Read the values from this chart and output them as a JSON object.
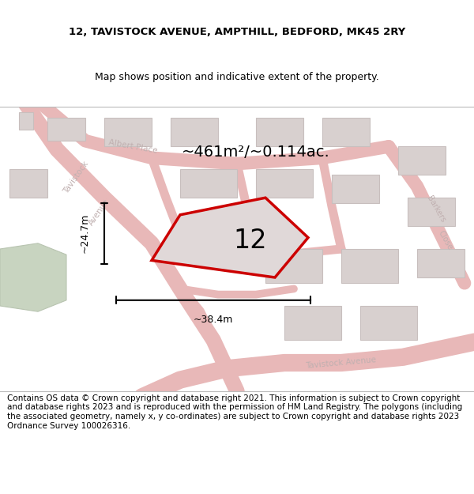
{
  "title_line1": "12, TAVISTOCK AVENUE, AMPTHILL, BEDFORD, MK45 2RY",
  "title_line2": "Map shows position and indicative extent of the property.",
  "area_label": "~461m²/~0.114ac.",
  "plot_number": "12",
  "dim_width": "~38.4m",
  "dim_height": "~24.7m",
  "footer_text": "Contains OS data © Crown copyright and database right 2021. This information is subject to Crown copyright and database rights 2023 and is reproduced with the permission of HM Land Registry. The polygons (including the associated geometry, namely x, y co-ordinates) are subject to Crown copyright and database rights 2023 Ordnance Survey 100026316.",
  "map_bg": "#ede8e8",
  "road_color": "#e8b8b8",
  "road_outline": "#d4a0a0",
  "building_color": "#d8d0cf",
  "building_edge": "#c8bfbe",
  "plot_fill": "#e0d8d8",
  "plot_edge": "#cc0000",
  "title_bg": "#ffffff",
  "footer_bg": "#ffffff",
  "green_color": "#c8d4c0",
  "green_edge": "#b8c4b0",
  "title_fontsize": 9.5,
  "subtitle_fontsize": 9.0,
  "footer_fontsize": 7.5,
  "area_fontsize": 14,
  "plotnum_fontsize": 24,
  "dim_fontsize": 9,
  "road_label_color": "#c0b0b0",
  "road_label_size": 7.5
}
